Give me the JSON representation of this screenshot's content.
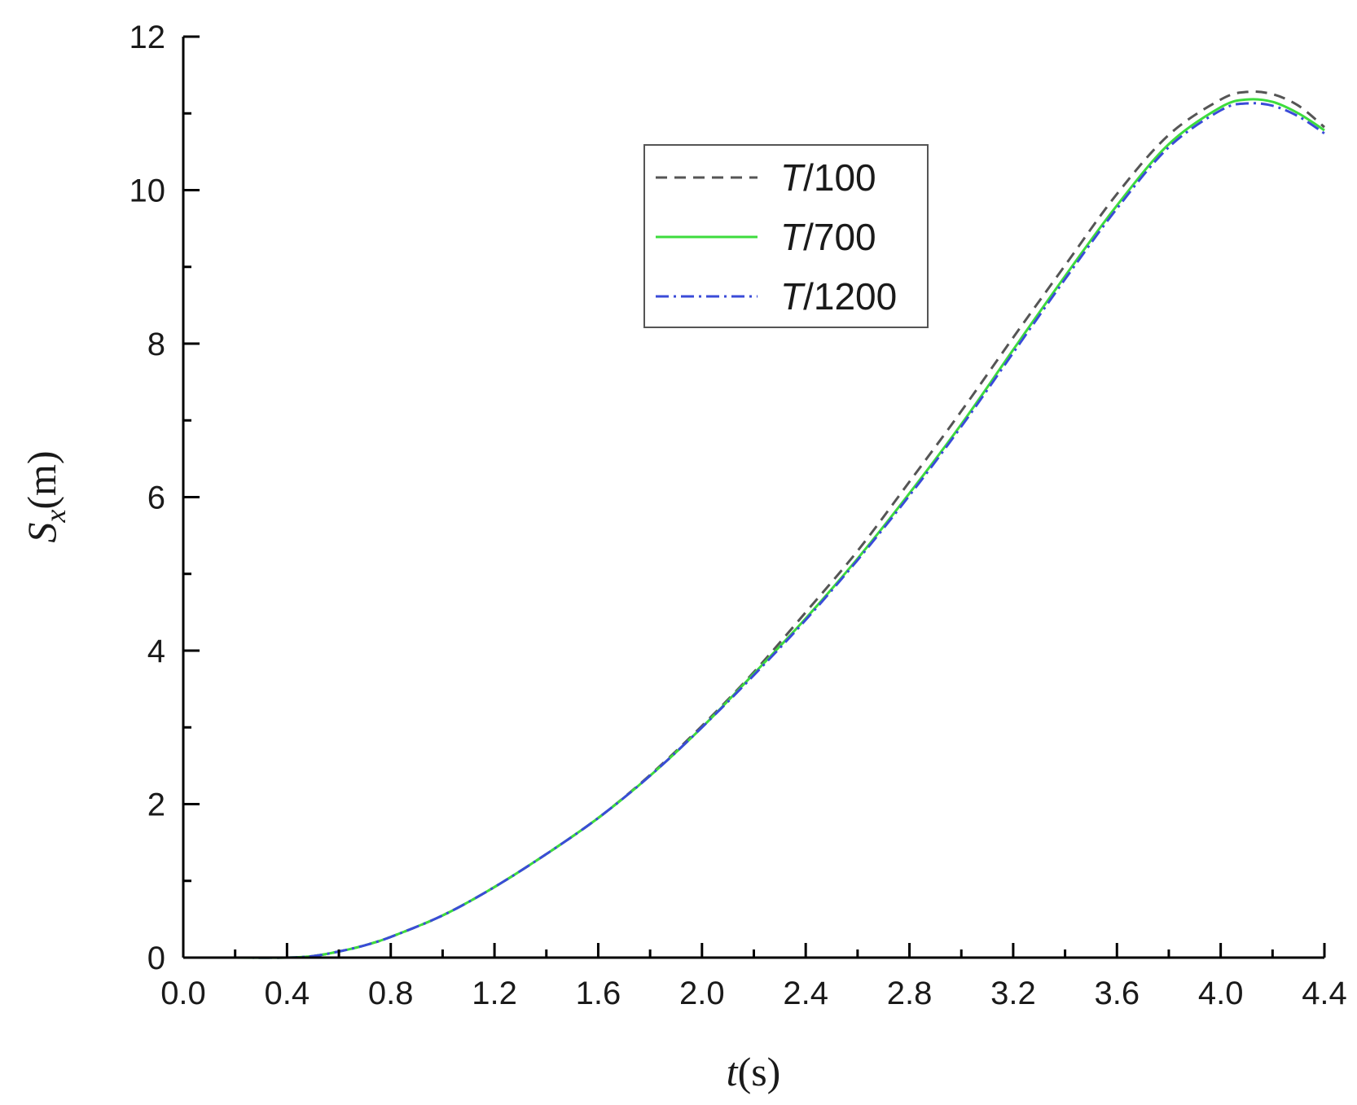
{
  "chart_data": {
    "type": "line",
    "xlabel": "t(s)",
    "ylabel": "Sx(m)",
    "xlim": [
      0,
      4.4
    ],
    "ylim": [
      0,
      12
    ],
    "x_ticks": [
      0.0,
      0.4,
      0.8,
      1.2,
      1.6,
      2.0,
      2.4,
      2.8,
      3.2,
      3.6,
      4.0,
      4.4
    ],
    "x_tick_labels": [
      "0.0",
      "0.4",
      "0.8",
      "1.2",
      "1.6",
      "2.0",
      "2.4",
      "2.8",
      "3.2",
      "3.6",
      "4.0",
      "4.4"
    ],
    "y_ticks": [
      0,
      2,
      4,
      6,
      8,
      10,
      12
    ],
    "y_tick_labels": [
      "0",
      "2",
      "4",
      "6",
      "8",
      "10",
      "12"
    ],
    "grid": false,
    "legend_position": "top-center",
    "x": [
      0.0,
      0.2,
      0.4,
      0.5,
      0.6,
      0.7,
      0.8,
      1.0,
      1.2,
      1.4,
      1.6,
      1.8,
      2.0,
      2.2,
      2.4,
      2.6,
      2.8,
      3.0,
      3.2,
      3.4,
      3.6,
      3.8,
      4.0,
      4.1,
      4.2,
      4.3,
      4.4
    ],
    "series": [
      {
        "name": "T/100",
        "color": "#555555",
        "dash": "dash",
        "values": [
          0,
          0,
          0,
          0.02,
          0.08,
          0.16,
          0.27,
          0.55,
          0.92,
          1.35,
          1.82,
          2.38,
          3.02,
          3.72,
          4.5,
          5.3,
          6.2,
          7.12,
          8.08,
          9.02,
          9.95,
          10.72,
          11.18,
          11.28,
          11.25,
          11.1,
          10.82
        ]
      },
      {
        "name": "T/700",
        "color": "#3ddc3d",
        "dash": "solid",
        "values": [
          0,
          0,
          0,
          0.02,
          0.08,
          0.16,
          0.27,
          0.55,
          0.92,
          1.35,
          1.82,
          2.37,
          3.0,
          3.7,
          4.42,
          5.2,
          6.05,
          6.95,
          7.92,
          8.88,
          9.8,
          10.6,
          11.08,
          11.18,
          11.15,
          11.0,
          10.78
        ]
      },
      {
        "name": "T/1200",
        "color": "#3a4bd8",
        "dash": "dashdot",
        "values": [
          0,
          0,
          0,
          0.02,
          0.08,
          0.16,
          0.27,
          0.55,
          0.92,
          1.35,
          1.82,
          2.37,
          3.0,
          3.68,
          4.4,
          5.18,
          6.02,
          6.92,
          7.88,
          8.84,
          9.76,
          10.56,
          11.04,
          11.13,
          11.1,
          10.96,
          10.74
        ]
      }
    ]
  }
}
